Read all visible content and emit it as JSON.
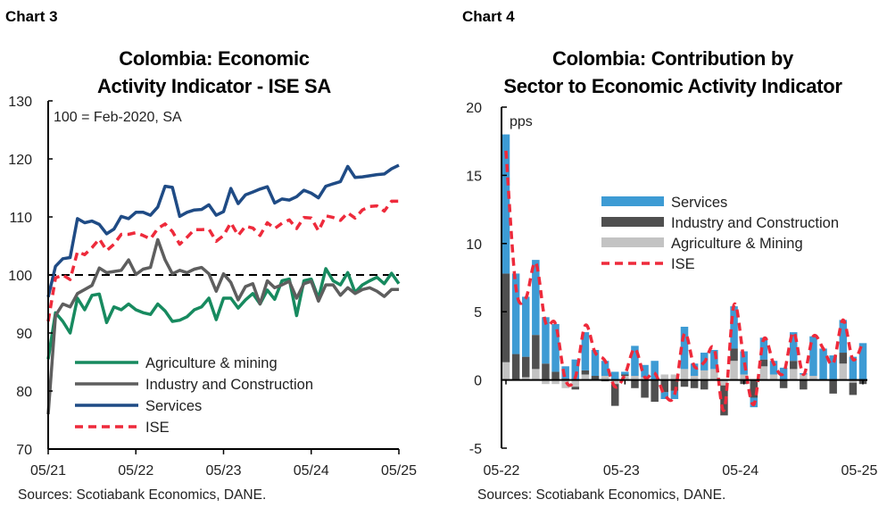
{
  "chart_data": [
    {
      "label": "Chart 3",
      "type": "line",
      "title": [
        "Colombia: Economic",
        "Activity Indicator - ISE SA"
      ],
      "annotation": "100 = Feb-2020, SA",
      "source": "Sources: Scotiabank Economics, DANE.",
      "x_start": "2021-05",
      "x_end": "2025-05",
      "frequency": "monthly",
      "x_tick_labels": [
        "05/21",
        "05/22",
        "05/23",
        "05/24",
        "05/25"
      ],
      "ylim": [
        70,
        130
      ],
      "y_ticks": [
        70,
        80,
        90,
        100,
        110,
        120,
        130
      ],
      "reference_line": 100,
      "legend_position": "bottom-left",
      "series": [
        {
          "name": "Agriculture & mining",
          "color": "#178a5f",
          "style": "solid",
          "values": [
            85.5,
            93.5,
            92,
            90,
            96,
            94,
            96.5,
            96.7,
            91.8,
            94.5,
            94,
            95,
            94,
            93.5,
            93.2,
            95,
            93.8,
            92,
            92.2,
            92.8,
            94,
            94.5,
            96,
            92.3,
            96,
            96,
            94.3,
            95.7,
            96.8,
            95,
            97.4,
            95.8,
            99,
            99.3,
            93,
            99,
            99.3,
            96,
            101.1,
            99,
            98.3,
            100.4,
            97,
            98.3,
            99,
            99.6,
            98.5,
            100.3,
            98.5
          ]
        },
        {
          "name": "Industry and Construction",
          "color": "#5e5e5e",
          "style": "solid",
          "values": [
            76,
            93,
            95,
            94.5,
            96.8,
            97.5,
            98.2,
            101.2,
            100.4,
            100.6,
            100.8,
            102.6,
            100.1,
            101,
            101.3,
            106.1,
            102.6,
            100.2,
            100.8,
            100.4,
            101,
            101.3,
            100.2,
            97.2,
            100.2,
            98.7,
            95.7,
            98,
            98.5,
            95,
            99,
            97.8,
            98.3,
            98.9,
            96,
            98.5,
            98.9,
            95.5,
            98.3,
            98.3,
            96.5,
            97.8,
            96.8,
            97.5,
            97.8,
            97.2,
            96.3,
            97.5,
            97.5
          ]
        },
        {
          "name": "Services",
          "color": "#1f4b85",
          "style": "solid",
          "values": [
            96.2,
            101.5,
            102.8,
            103,
            109.7,
            109,
            109.3,
            108.7,
            107.1,
            107.9,
            110.1,
            109.7,
            110.8,
            110.8,
            110.3,
            111.7,
            115.3,
            115.1,
            110.1,
            110.8,
            111.2,
            111.3,
            112.1,
            110.3,
            110.9,
            114.9,
            112.3,
            113.8,
            114.3,
            114.8,
            115.2,
            112.4,
            113.1,
            112.9,
            113.5,
            114.6,
            114.1,
            113.3,
            115.3,
            115.7,
            116.1,
            118.7,
            116.8,
            116.9,
            117.1,
            117.3,
            117.4,
            118.3,
            118.9
          ]
        },
        {
          "name": "ISE",
          "color": "#ee2a3b",
          "style": "dashed",
          "values": [
            92,
            99.5,
            100,
            99.2,
            104,
            103.5,
            104.7,
            106.2,
            104.2,
            105.3,
            107,
            107,
            107.3,
            106.8,
            106.2,
            108,
            108.8,
            107.5,
            105.3,
            106.5,
            107.8,
            107.8,
            107.9,
            105.8,
            106.8,
            109,
            106.8,
            108.4,
            108.1,
            106.8,
            109,
            108,
            108.9,
            109.5,
            108,
            109.9,
            109.8,
            107.6,
            110.2,
            109.9,
            109.4,
            110.7,
            109.8,
            111.2,
            111.8,
            111.9,
            111,
            112.7,
            112.7
          ]
        }
      ]
    },
    {
      "label": "Chart 4",
      "type": "bar",
      "stacked": true,
      "title": [
        "Colombia: Contribution by",
        "Sector to Economic Activity Indicator"
      ],
      "annotation": "pps",
      "source": "Sources: Scotiabank Economics, DANE.",
      "x_start": "2022-05",
      "x_end": "2025-05",
      "frequency": "monthly",
      "x_tick_labels": [
        "05-22",
        "05-23",
        "05-24",
        "05-25"
      ],
      "ylim": [
        -5,
        20
      ],
      "y_ticks": [
        -5,
        0,
        5,
        10,
        15,
        20
      ],
      "legend_position": "center-right",
      "series": [
        {
          "name": "Services",
          "color": "#3d9bd4",
          "kind": "bar",
          "values": [
            10.2,
            5.9,
            4.4,
            5.5,
            3.4,
            3.5,
            0.9,
            1.5,
            2.8,
            1.9,
            1.1,
            0.6,
            0.2,
            2.2,
            0.9,
            1.4,
            -0.5,
            -0.6,
            3.1,
            0.9,
            1.3,
            1.4,
            0,
            3.1,
            1.7,
            -0.7,
            1.6,
            1.0,
            0.9,
            2.1,
            0.1,
            2.9,
            2.3,
            1.8,
            2.4,
            1.7,
            2.7
          ]
        },
        {
          "name": "Industry and Construction",
          "color": "#4f4f4f",
          "kind": "bar",
          "values": [
            6.5,
            1.9,
            1.5,
            2.5,
            1.2,
            0.6,
            0.1,
            -0.2,
            0.3,
            0.3,
            -0.1,
            -1.6,
            0.1,
            -0.6,
            -1.3,
            -1.6,
            -0.9,
            -0.8,
            -0.5,
            -0.6,
            -0.7,
            0,
            -2.2,
            0.9,
            -0.3,
            -1.3,
            0.5,
            0,
            -0.6,
            0.6,
            -0.7,
            0,
            0,
            -1.0,
            0.8,
            -0.9,
            -0.3
          ]
        },
        {
          "name": "Agriculture & Mining",
          "color": "#c3c3c3",
          "kind": "bar",
          "values": [
            1.3,
            0,
            0.2,
            0.8,
            -0.3,
            -0.3,
            -0.6,
            -0.5,
            0.4,
            0,
            0.3,
            -0.3,
            0.3,
            0.3,
            0.2,
            0,
            0.4,
            0.4,
            0.8,
            0.3,
            0.7,
            0.8,
            -0.4,
            1.4,
            0.4,
            0,
            1.0,
            0.4,
            0,
            0.8,
            0.4,
            0.3,
            0,
            0,
            1.2,
            -0.2,
            0
          ]
        },
        {
          "name": "ISE",
          "color": "#ee2a3b",
          "kind": "dashed-line",
          "values": [
            16.8,
            6.8,
            6,
            8.6,
            4.2,
            4.1,
            0,
            0.2,
            4,
            2,
            1.4,
            -0.5,
            0.4,
            2.3,
            0.2,
            0.5,
            -1.1,
            -1.1,
            3.4,
            1.0,
            1.3,
            2.3,
            -2.2,
            5.5,
            1.5,
            -1.8,
            3.0,
            1.2,
            0.5,
            3.5,
            0.4,
            3.2,
            2.3,
            1.2,
            4.4,
            1.5,
            2.8
          ]
        }
      ]
    }
  ]
}
